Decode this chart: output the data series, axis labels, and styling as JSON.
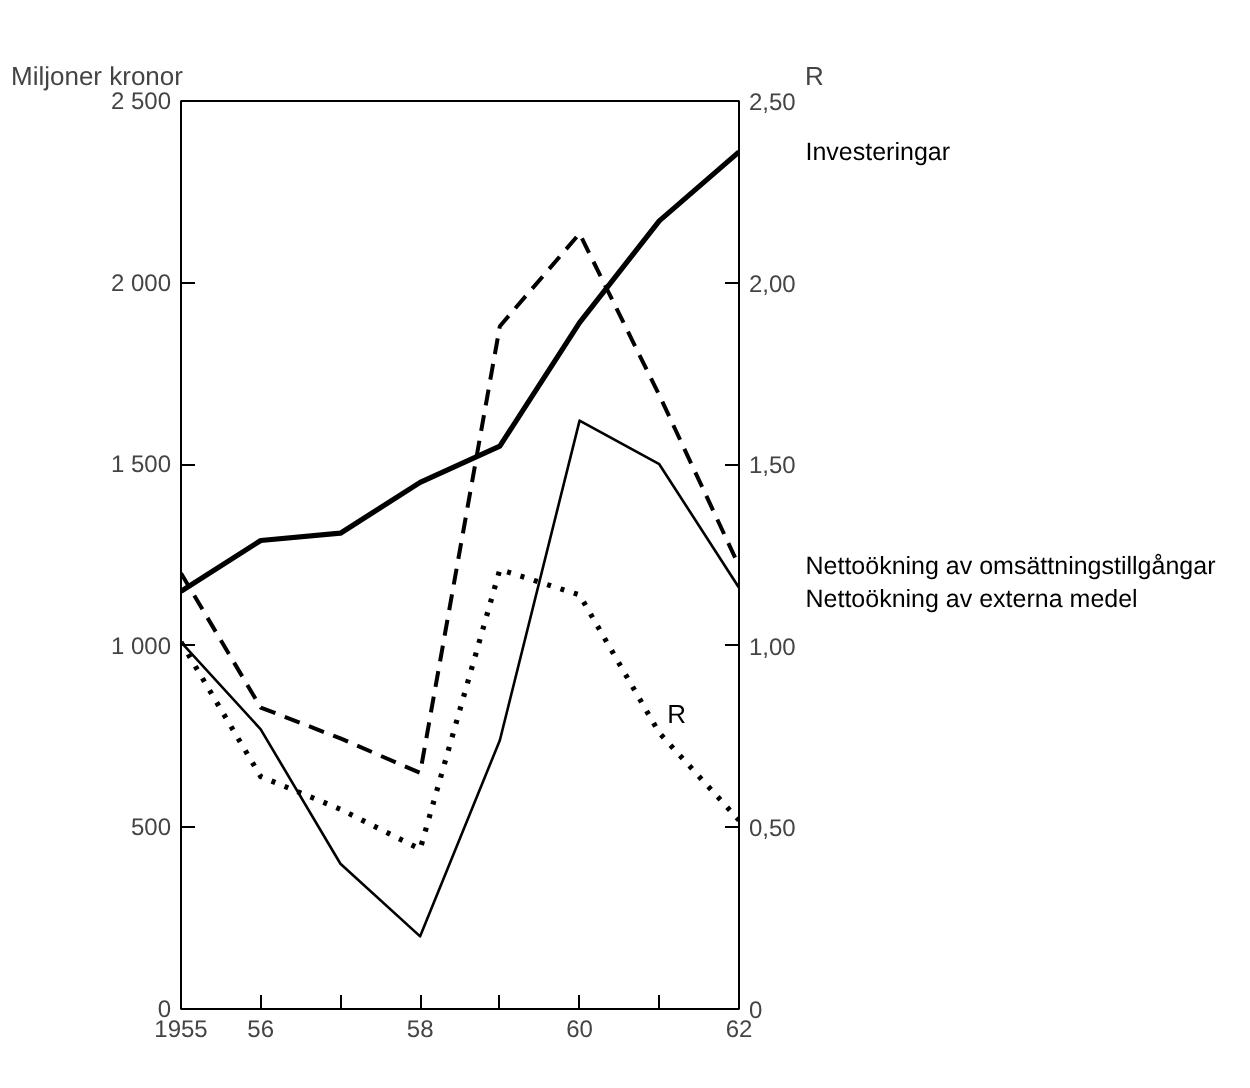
{
  "chart_data": {
    "type": "line",
    "ylabel": "Miljoner kronor",
    "y2label": "R",
    "x": [
      1955,
      1956,
      1957,
      1958,
      1959,
      1960,
      1961,
      1962
    ],
    "xlim": [
      1955,
      1962
    ],
    "xticks": [
      {
        "value": 1955,
        "label": "1955"
      },
      {
        "value": 1956,
        "label": "56"
      },
      {
        "value": 1957,
        "label": null
      },
      {
        "value": 1958,
        "label": "58"
      },
      {
        "value": 1959,
        "label": null
      },
      {
        "value": 1960,
        "label": "60"
      },
      {
        "value": 1961,
        "label": null
      },
      {
        "value": 1962,
        "label": "62"
      }
    ],
    "ylim": [
      0,
      2500
    ],
    "yticks": [
      0,
      {
        "value": 500,
        "label": "500"
      },
      {
        "value": 1000,
        "label": "1 000"
      },
      {
        "value": 1500,
        "label": "1 500"
      },
      {
        "value": 2000,
        "label": "2 000"
      },
      {
        "value": 2500,
        "label": "2 500"
      }
    ],
    "y2lim": [
      0,
      2.5
    ],
    "y2ticks": [
      0,
      {
        "value": 0.5,
        "label": "0,50"
      },
      {
        "value": 1.0,
        "label": "1,00"
      },
      {
        "value": 1.5,
        "label": "1,50"
      },
      {
        "value": 2.0,
        "label": "2,00"
      },
      {
        "value": 2.5,
        "label": "2,50"
      }
    ],
    "series": [
      {
        "name": "Investeringar",
        "color": "#000000",
        "line_style": "solid",
        "values": [
          1150,
          1290,
          1310,
          1450,
          1550,
          1890,
          2170,
          2360
        ]
      },
      {
        "name": "Nettoökning av omsättningstillgångar",
        "color": "#000000",
        "line_style": "dashed",
        "values": [
          1200,
          830,
          745,
          650,
          1880,
          2135,
          1690,
          1220
        ]
      },
      {
        "name": "Nettoökning av externa medel",
        "color": "#000000",
        "line_style": "solid",
        "values": [
          1010,
          770,
          400,
          200,
          740,
          1620,
          1500,
          1160
        ]
      },
      {
        "name": "R",
        "color": "#000000",
        "line_style": "dotted",
        "axis": "y2",
        "values": [
          1.01,
          0.64,
          0.55,
          0.44,
          1.21,
          1.14,
          0.76,
          0.52
        ]
      }
    ],
    "grid": false,
    "marker": "none"
  }
}
